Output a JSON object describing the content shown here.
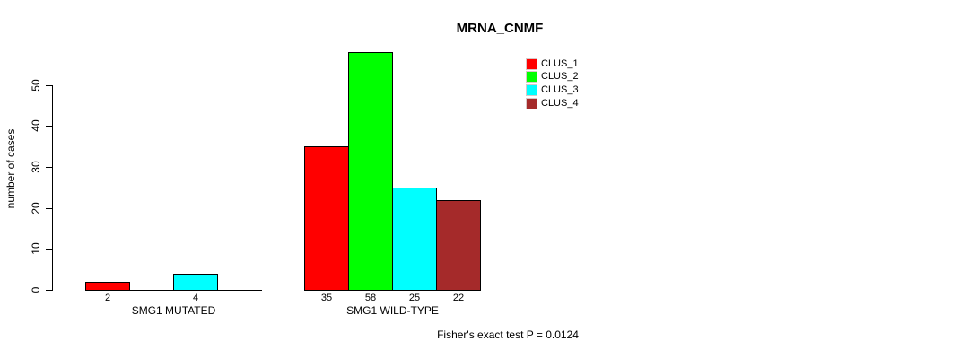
{
  "chart_data": {
    "type": "bar",
    "title": "MRNA_CNMF",
    "ylabel": "number of cases",
    "ylim": [
      0,
      58
    ],
    "yticks": [
      0,
      10,
      20,
      30,
      40,
      50
    ],
    "grid": false,
    "legend_position": "top-right",
    "series_names": [
      "CLUS_1",
      "CLUS_2",
      "CLUS_3",
      "CLUS_4"
    ],
    "legend": [
      {
        "label": "CLUS_1",
        "color": "#ff0000"
      },
      {
        "label": "CLUS_2",
        "color": "#00ff00"
      },
      {
        "label": "CLUS_3",
        "color": "#00ffff"
      },
      {
        "label": "CLUS_4",
        "color": "#a52a2a"
      }
    ],
    "groups": [
      {
        "label": "SMG1 MUTATED",
        "values": [
          2,
          0,
          4,
          0
        ],
        "bar_labels": [
          "2",
          "",
          "4",
          ""
        ]
      },
      {
        "label": "SMG1 WILD-TYPE",
        "values": [
          35,
          58,
          25,
          22
        ],
        "bar_labels": [
          "35",
          "58",
          "25",
          "22"
        ]
      }
    ],
    "annotation": "Fisher's exact test P = 0.0124"
  }
}
